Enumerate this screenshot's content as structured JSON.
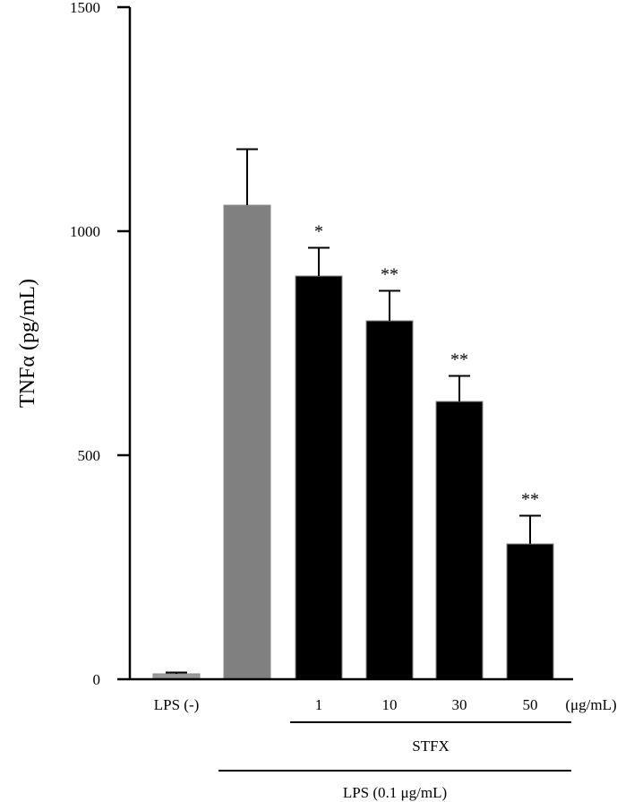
{
  "chart_data": {
    "type": "bar",
    "ylabel": "TNFα (pg/mL)",
    "ylim": [
      0,
      1500
    ],
    "yticks": [
      "0",
      "500",
      "1000",
      "1500"
    ],
    "grid": false,
    "categories": [
      "LPS (-)",
      "",
      "1",
      "10",
      "30",
      "50"
    ],
    "values": [
      12,
      1058,
      900,
      800,
      620,
      302
    ],
    "errors": [
      3,
      125,
      63,
      67,
      57,
      63
    ],
    "bar_colors": [
      "#9a9a9a",
      "#808080",
      "#000000",
      "#000000",
      "#000000",
      "#000000"
    ],
    "significance": [
      "",
      "",
      "*",
      "**",
      "**",
      "**"
    ],
    "unit_label": "(μg/mL)",
    "group_labels": [
      {
        "text": "STFX",
        "from": 2,
        "to": 5
      },
      {
        "text": "LPS (0.1 μg/mL)",
        "from": 1,
        "to": 5
      }
    ]
  }
}
